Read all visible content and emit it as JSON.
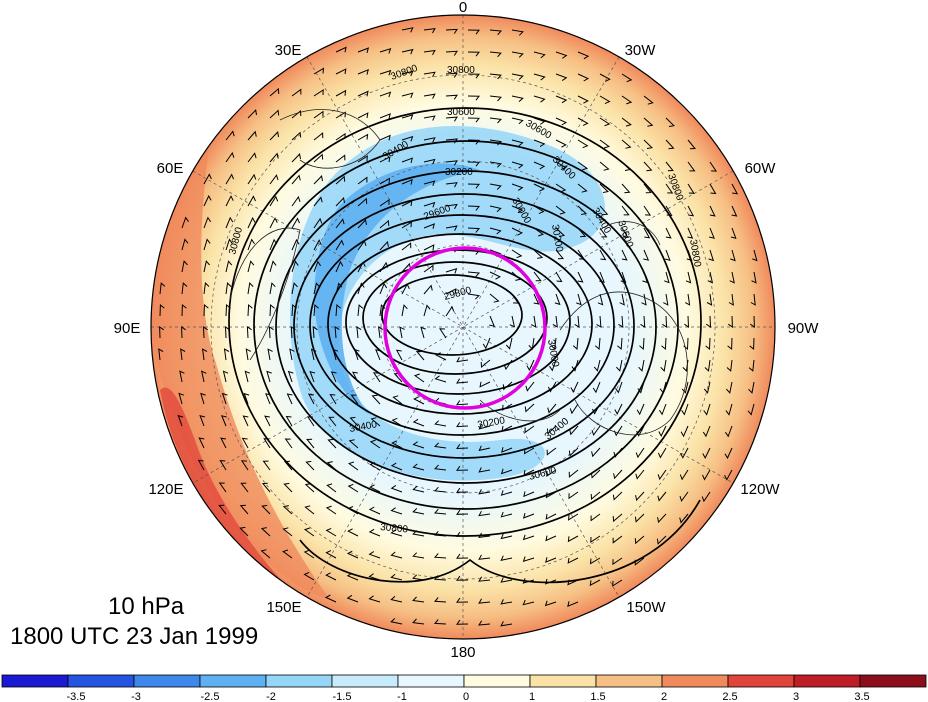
{
  "map": {
    "projection": "north polar stereographic",
    "longitude_labels": [
      "0",
      "30W",
      "60W",
      "90W",
      "120W",
      "150W",
      "180",
      "150E",
      "120E",
      "90E",
      "60E",
      "30E"
    ],
    "contour_labels": [
      "30800",
      "30800",
      "30600",
      "30600",
      "30400",
      "30400",
      "30200",
      "30000",
      "29600",
      "29800",
      "30200",
      "30400",
      "30600",
      "30800",
      "30800",
      "30800",
      "30200",
      "30000",
      "30400",
      "30600",
      "30400",
      "30800"
    ],
    "highlight_circle_color": "#e000e0",
    "contour_color": "#000000",
    "wind_barb_color": "#000000",
    "coastline_color": "#000000"
  },
  "annotation": {
    "level": "10 hPa",
    "valid_time": "1800 UTC 23 Jan 1999"
  },
  "colorbar": {
    "tick_labels": [
      "-3.5",
      "-3",
      "-2.5",
      "-2",
      "-1.5",
      "-1",
      "0",
      "1",
      "1.5",
      "2",
      "2.5",
      "3",
      "3.5"
    ],
    "colors": [
      "#1a1ad2",
      "#2454e0",
      "#3d88ea",
      "#5fb0f2",
      "#95d6f8",
      "#c6ecfb",
      "#e8f7fd",
      "#fffbe0",
      "#fbe3a8",
      "#f6bf84",
      "#f08a5c",
      "#e0443a",
      "#c01e26",
      "#8c0e1a"
    ]
  }
}
